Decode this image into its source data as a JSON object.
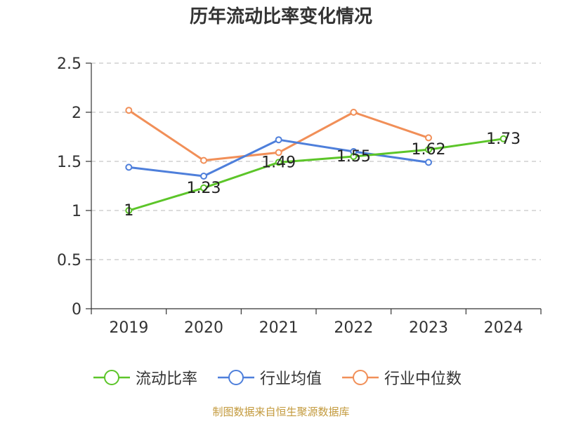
{
  "title": "历年流动比率变化情况",
  "source": "制图数据来自恒生聚源数据库",
  "chart_data": {
    "type": "line",
    "title": "历年流动比率变化情况",
    "categories": [
      "2019",
      "2020",
      "2021",
      "2022",
      "2023",
      "2024"
    ],
    "ylim": [
      0,
      2.5
    ],
    "yticks": [
      0,
      0.5,
      1,
      1.5,
      2,
      2.5
    ],
    "ytick_labels": [
      "0",
      "0.5",
      "1",
      "1.5",
      "2",
      "2.5"
    ],
    "grid": true,
    "legend_position": "bottom",
    "series": [
      {
        "name": "流动比率",
        "color": "#5cc529",
        "values": [
          1,
          1.23,
          1.49,
          1.55,
          1.62,
          1.73
        ],
        "labels": [
          "1",
          "1.23",
          "1.49",
          "1.55",
          "1.62",
          "1.73"
        ]
      },
      {
        "name": "行业均值",
        "color": "#4e7fdb",
        "values": [
          1.44,
          1.35,
          1.72,
          1.6,
          1.49,
          null
        ]
      },
      {
        "name": "行业中位数",
        "color": "#f18f58",
        "values": [
          2.02,
          1.51,
          1.59,
          2.0,
          1.74,
          null
        ]
      }
    ]
  }
}
